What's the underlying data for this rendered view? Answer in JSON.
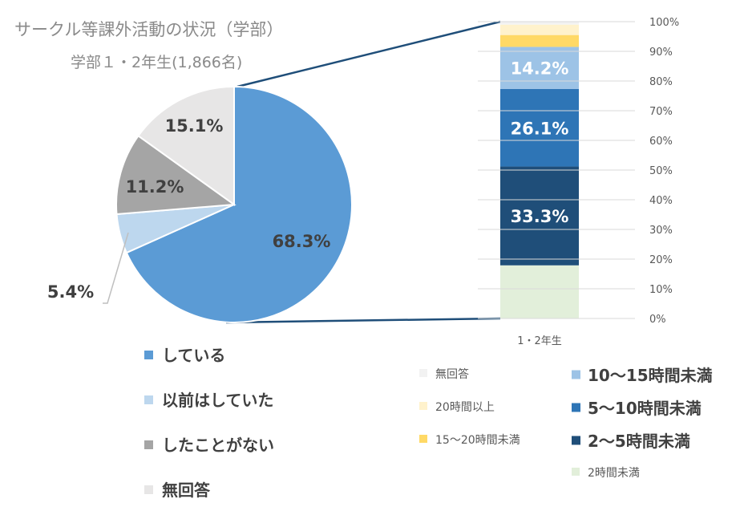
{
  "title": "サークル等課外活動の状況（学部）",
  "subtitle": "学部１・2年生(1,866名)",
  "chart_data": [
    {
      "type": "pie",
      "title": "サークル等課外活動の状況（学部）",
      "subtitle": "学部１・2年生(1,866名)",
      "slices": [
        {
          "label": "している",
          "value": 68.3,
          "display": "68.3%",
          "color": "#5b9bd5"
        },
        {
          "label": "以前はしていた",
          "value": 5.4,
          "display": "5.4%",
          "color": "#bdd7ee"
        },
        {
          "label": "したことがない",
          "value": 11.2,
          "display": "11.2%",
          "color": "#a5a5a5"
        },
        {
          "label": "無回答",
          "value": 15.1,
          "display": "15.1%",
          "color": "#e7e6e6"
        }
      ],
      "legend": "bottom-left"
    },
    {
      "type": "bar",
      "stacked": true,
      "categories": [
        "1・2年生"
      ],
      "ylim": [
        0,
        100
      ],
      "yticks": [
        "0%",
        "10%",
        "20%",
        "30%",
        "40%",
        "50%",
        "60%",
        "70%",
        "80%",
        "90%",
        "100%"
      ],
      "series": [
        {
          "name": "2時間未満",
          "values": [
            17.9
          ],
          "display": "",
          "color": "#e2efda"
        },
        {
          "name": "2〜5時間未満",
          "values": [
            33.3
          ],
          "display": "33.3%",
          "color": "#1f4e79"
        },
        {
          "name": "5〜10時間未満",
          "values": [
            26.1
          ],
          "display": "26.1%",
          "color": "#2e75b6"
        },
        {
          "name": "10〜15時間未満",
          "values": [
            14.2
          ],
          "display": "14.2%",
          "color": "#9dc3e6"
        },
        {
          "name": "15〜20時間未満",
          "values": [
            4.0
          ],
          "display": "",
          "color": "#ffd966"
        },
        {
          "name": "20時間以上",
          "values": [
            3.5
          ],
          "display": "",
          "color": "#fff2cc"
        },
        {
          "name": "無回答",
          "values": [
            1.0
          ],
          "display": "",
          "color": "#f2f2f2"
        }
      ],
      "legend": [
        {
          "name": "無回答",
          "color": "#f2f2f2",
          "big": false
        },
        {
          "name": "10〜15時間未満",
          "color": "#9dc3e6",
          "big": true
        },
        {
          "name": "20時間以上",
          "color": "#fff2cc",
          "big": false
        },
        {
          "name": "5〜10時間未満",
          "color": "#2e75b6",
          "big": true
        },
        {
          "name": "15〜20時間未満",
          "color": "#ffd966",
          "big": false
        },
        {
          "name": "2〜5時間未満",
          "color": "#1f4e79",
          "big": true
        },
        {
          "name": "2時間未満",
          "color": "#e2efda",
          "big": false
        }
      ]
    }
  ]
}
